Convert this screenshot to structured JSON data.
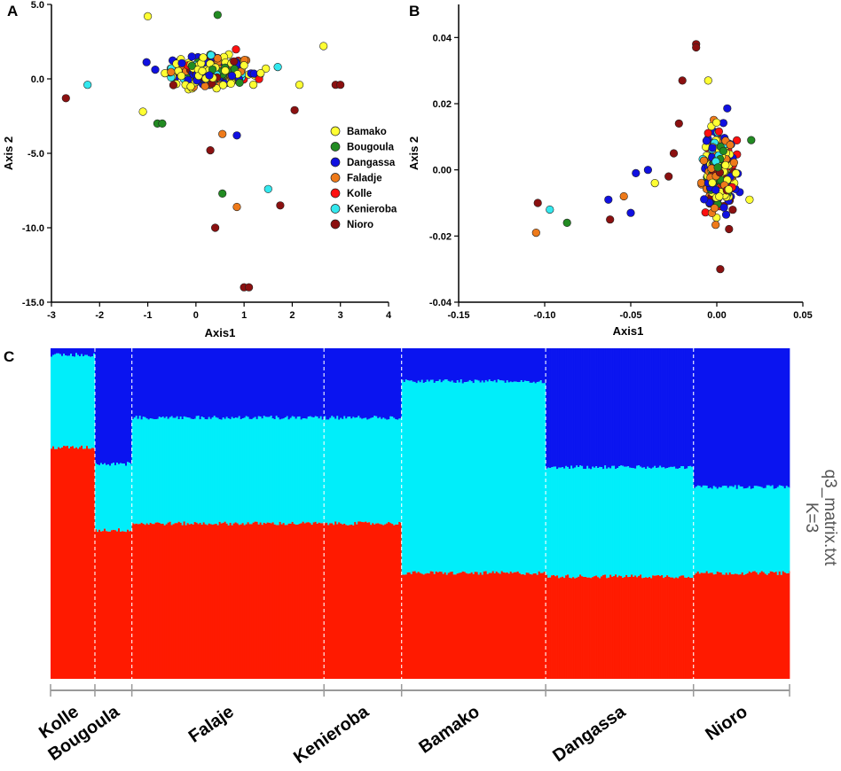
{
  "colors": {
    "Bamako": "#ffff33",
    "Bougoula": "#228b22",
    "Dangassa": "#1010e0",
    "Faladje": "#ee7a1a",
    "Kolle": "#ff1010",
    "Kenieroba": "#33e8ee",
    "Nioro": "#8b1010"
  },
  "chart_data": [
    {
      "panel": "A",
      "type": "scatter",
      "xlabel": "Axis1",
      "ylabel": "Axis 2",
      "xlim": [
        -3,
        4
      ],
      "ylim": [
        -15,
        5
      ],
      "xticks": [
        "-3",
        "-2",
        "-1",
        "0",
        "1",
        "2",
        "3",
        "4"
      ],
      "yticks": [
        "5.0",
        "0.0",
        "-5.0",
        "-10.0",
        "-15.0"
      ],
      "legend": [
        "Bamako",
        "Bougoula",
        "Dangassa",
        "Faladje",
        "Kolle",
        "Kenieroba",
        "Nioro"
      ],
      "legend_position": "right",
      "cluster": {
        "x_center": 0.35,
        "y_center": 0.5,
        "x_spread": 0.75,
        "y_spread": 0.9,
        "n": 320
      },
      "outliers": [
        {
          "group": "Bamako",
          "x": -1.0,
          "y": 4.2
        },
        {
          "group": "Bougoula",
          "x": 0.45,
          "y": 4.3
        },
        {
          "group": "Bamako",
          "x": 2.65,
          "y": 2.2
        },
        {
          "group": "Kenieroba",
          "x": -2.25,
          "y": -0.4
        },
        {
          "group": "Nioro",
          "x": -2.7,
          "y": -1.3
        },
        {
          "group": "Nioro",
          "x": 2.9,
          "y": -0.4
        },
        {
          "group": "Nioro",
          "x": 3.0,
          "y": -0.4
        },
        {
          "group": "Bougoula",
          "x": -0.8,
          "y": -3.0
        },
        {
          "group": "Bougoula",
          "x": -0.7,
          "y": -3.0
        },
        {
          "group": "Faladje",
          "x": 0.55,
          "y": -3.7
        },
        {
          "group": "Dangassa",
          "x": 0.85,
          "y": -3.8
        },
        {
          "group": "Nioro",
          "x": 0.3,
          "y": -4.8
        },
        {
          "group": "Bougoula",
          "x": 0.55,
          "y": -7.7
        },
        {
          "group": "Kenieroba",
          "x": 1.5,
          "y": -7.4
        },
        {
          "group": "Faladje",
          "x": 0.85,
          "y": -8.6
        },
        {
          "group": "Nioro",
          "x": 1.75,
          "y": -8.5
        },
        {
          "group": "Nioro",
          "x": 0.4,
          "y": -10.0
        },
        {
          "group": "Nioro",
          "x": 1.0,
          "y": -14.0
        },
        {
          "group": "Nioro",
          "x": 1.1,
          "y": -14.0
        },
        {
          "group": "Kenieroba",
          "x": 1.7,
          "y": 0.8
        },
        {
          "group": "Nioro",
          "x": 2.05,
          "y": -2.1
        },
        {
          "group": "Bamako",
          "x": 2.15,
          "y": -0.4
        },
        {
          "group": "Bamako",
          "x": -1.1,
          "y": -2.2
        }
      ]
    },
    {
      "panel": "B",
      "type": "scatter",
      "xlabel": "Axis1",
      "ylabel": "Axis 2",
      "xlim": [
        -0.15,
        0.05
      ],
      "ylim": [
        -0.04,
        0.05
      ],
      "xticks": [
        "-0.15",
        "-0.10",
        "-0.05",
        "0.00",
        "0.05"
      ],
      "yticks": [
        "0.04",
        "0.02",
        "0.00",
        "-0.02",
        "-0.04"
      ],
      "cluster": {
        "x_center": 0.001,
        "y_center": 0.0,
        "x_spread": 0.008,
        "y_spread": 0.011,
        "n": 300
      },
      "outliers": [
        {
          "group": "Nioro",
          "x": -0.012,
          "y": 0.038
        },
        {
          "group": "Nioro",
          "x": -0.012,
          "y": 0.037
        },
        {
          "group": "Bamako",
          "x": -0.005,
          "y": 0.027
        },
        {
          "group": "Nioro",
          "x": -0.02,
          "y": 0.027
        },
        {
          "group": "Nioro",
          "x": -0.022,
          "y": 0.014
        },
        {
          "group": "Nioro",
          "x": 0.002,
          "y": -0.03
        },
        {
          "group": "Nioro",
          "x": -0.104,
          "y": -0.01
        },
        {
          "group": "Faladje",
          "x": -0.105,
          "y": -0.019
        },
        {
          "group": "Kenieroba",
          "x": -0.097,
          "y": -0.012
        },
        {
          "group": "Bougoula",
          "x": -0.087,
          "y": -0.016
        },
        {
          "group": "Nioro",
          "x": -0.062,
          "y": -0.015
        },
        {
          "group": "Faladje",
          "x": -0.054,
          "y": -0.008
        },
        {
          "group": "Dangassa",
          "x": -0.063,
          "y": -0.009
        },
        {
          "group": "Dangassa",
          "x": -0.05,
          "y": -0.013
        },
        {
          "group": "Dangassa",
          "x": -0.047,
          "y": -0.001
        },
        {
          "group": "Dangassa",
          "x": -0.04,
          "y": 0.0
        },
        {
          "group": "Bamako",
          "x": -0.036,
          "y": -0.004
        },
        {
          "group": "Nioro",
          "x": -0.028,
          "y": -0.002
        },
        {
          "group": "Nioro",
          "x": -0.025,
          "y": 0.005
        },
        {
          "group": "Bougoula",
          "x": 0.02,
          "y": 0.009
        },
        {
          "group": "Bamako",
          "x": 0.019,
          "y": -0.009
        }
      ]
    },
    {
      "panel": "C",
      "type": "bar",
      "stacked": true,
      "title": "q3_matrix.txt",
      "subtitle": "K=3",
      "components": [
        "K1 (red)",
        "K2 (cyan)",
        "K3 (blue)"
      ],
      "component_colors": [
        "#ff1a00",
        "#00eefa",
        "#0a14f0"
      ],
      "populations": [
        {
          "name": "Kolle",
          "n": 12,
          "red": 0.7,
          "cyan": 0.28,
          "blue": 0.02
        },
        {
          "name": "Bougoula",
          "n": 10,
          "red": 0.45,
          "cyan": 0.2,
          "blue": 0.35
        },
        {
          "name": "Falaje",
          "n": 52,
          "red": 0.47,
          "cyan": 0.32,
          "blue": 0.21
        },
        {
          "name": "Kenieroba",
          "n": 21,
          "red": 0.47,
          "cyan": 0.32,
          "blue": 0.21
        },
        {
          "name": "Bamako",
          "n": 39,
          "red": 0.32,
          "cyan": 0.58,
          "blue": 0.1
        },
        {
          "name": "Dangassa",
          "n": 40,
          "red": 0.31,
          "cyan": 0.33,
          "blue": 0.36
        },
        {
          "name": "Nioro",
          "n": 26,
          "red": 0.32,
          "cyan": 0.26,
          "blue": 0.42
        }
      ]
    }
  ],
  "panels": {
    "a": {
      "letter": "A"
    },
    "b": {
      "letter": "B"
    },
    "c": {
      "letter": "C"
    }
  }
}
